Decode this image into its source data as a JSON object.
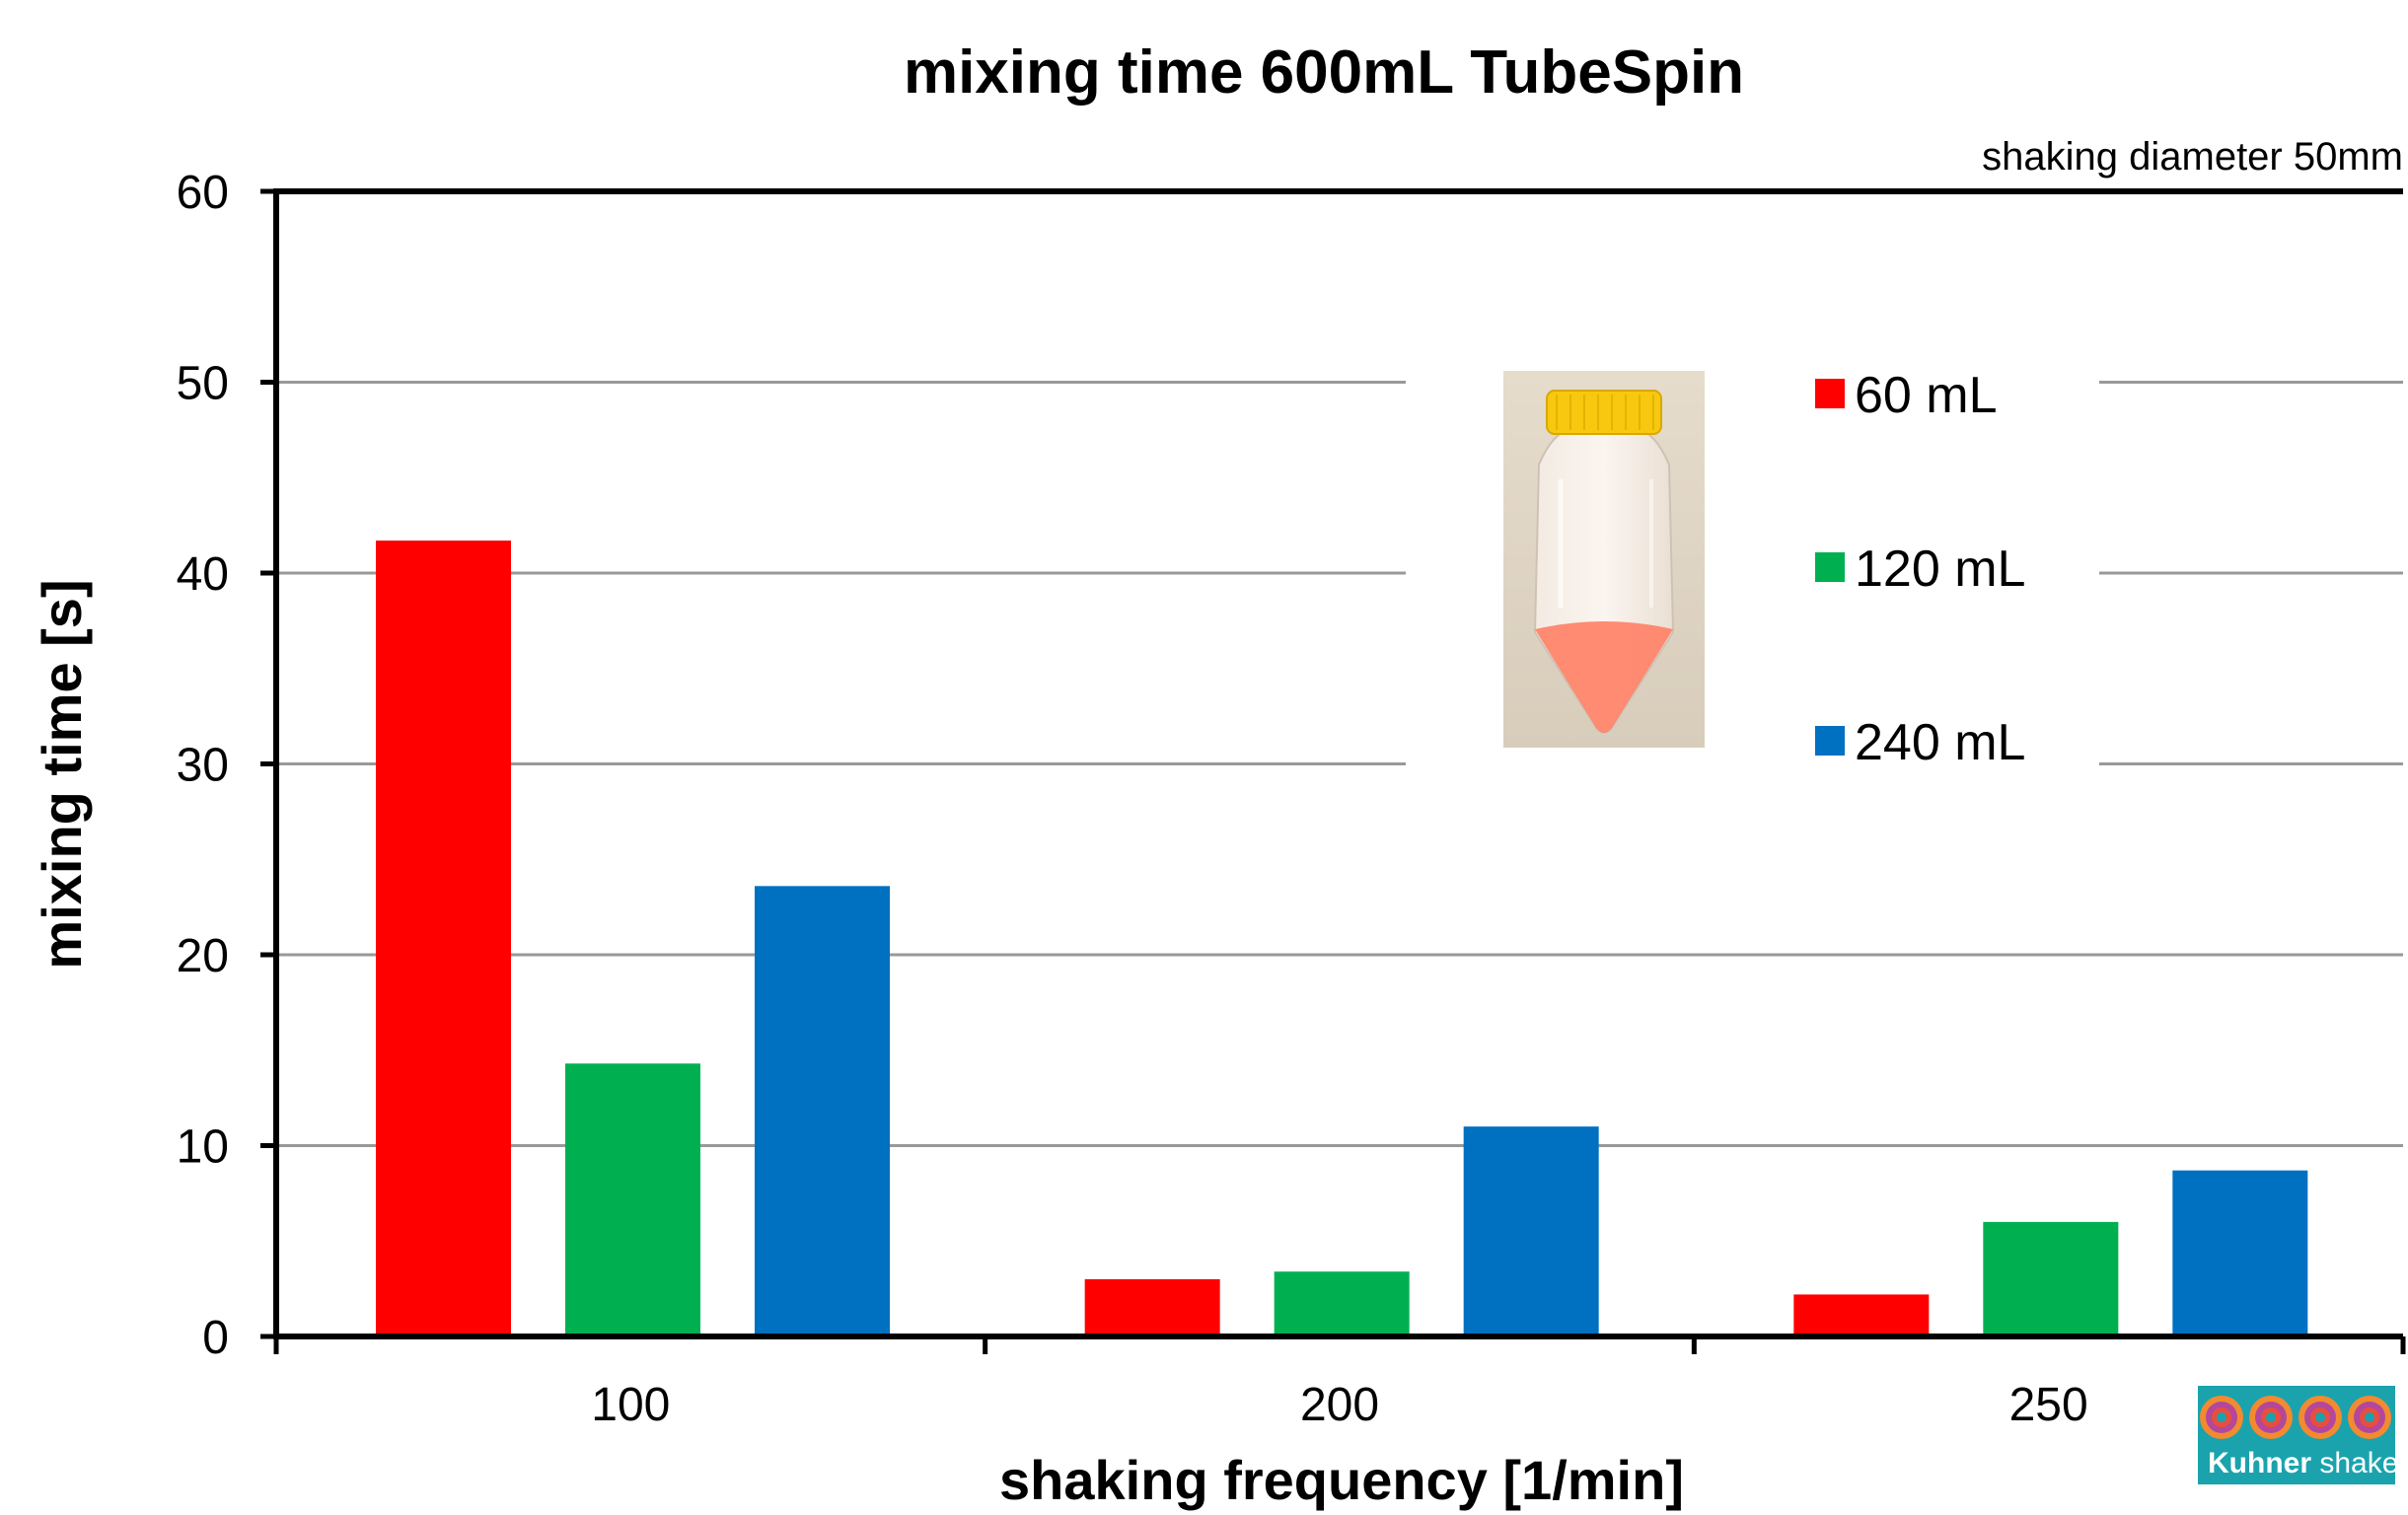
{
  "chart_data": {
    "type": "bar",
    "title": "mixing time 600mL TubeSpin",
    "subtitle": "shaking diameter 50mm",
    "xlabel": "shaking frequency  [1/min]",
    "ylabel": "mixing time [s]",
    "categories": [
      "100",
      "200",
      "250"
    ],
    "ylim": [
      0,
      60
    ],
    "yticks": [
      0,
      10,
      20,
      30,
      40,
      50,
      60
    ],
    "grid": true,
    "legend_position": "top-right",
    "series": [
      {
        "name": "60 mL",
        "color": "#ff0000",
        "values": [
          41.7,
          3.0,
          2.2
        ]
      },
      {
        "name": "120 mL",
        "color": "#00b050",
        "values": [
          14.3,
          3.4,
          6.0
        ]
      },
      {
        "name": "240 mL",
        "color": "#0070c0",
        "values": [
          23.6,
          11.0,
          8.7
        ]
      }
    ]
  },
  "inset": {
    "photo": "tubespin-bottle-photo",
    "cap_color": "#f7c80f",
    "liquid_color": "#ff8065"
  },
  "logo": {
    "brand": "Kuhner",
    "product": "shaker",
    "background": "#1aa3ad",
    "ring_colors": [
      "#e94e3c",
      "#b3479b",
      "#f28a30"
    ]
  }
}
